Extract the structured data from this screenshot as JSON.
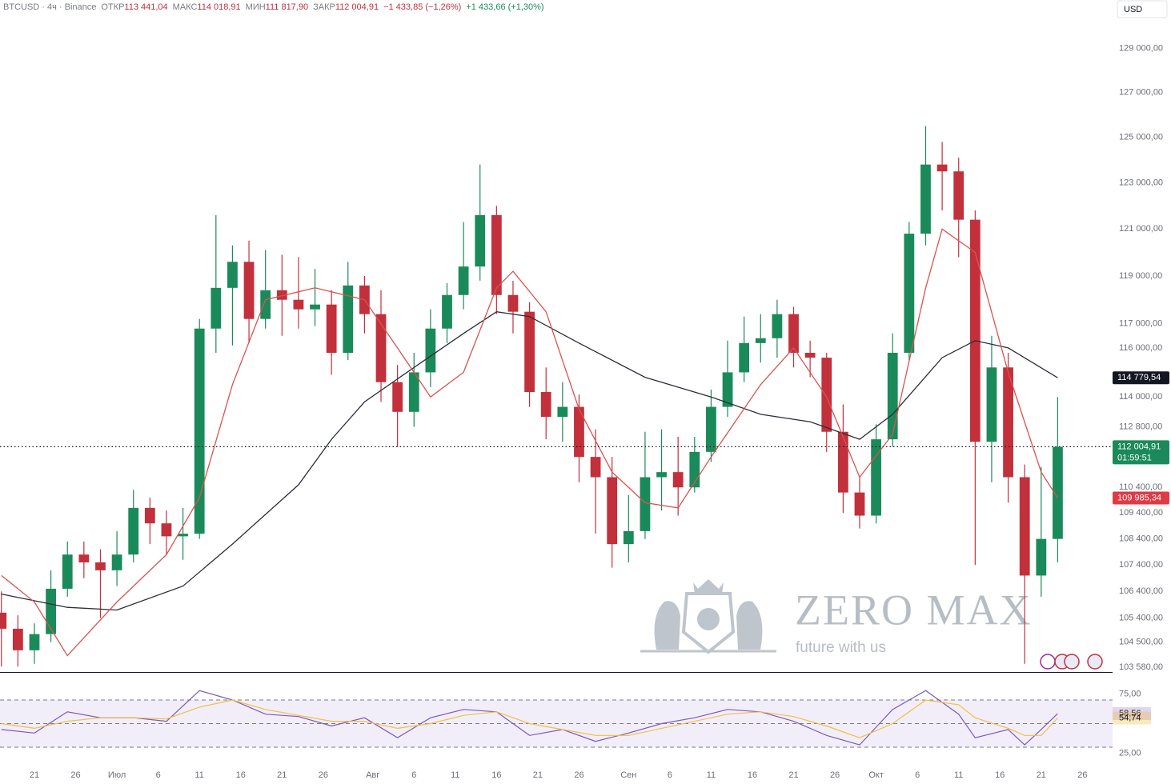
{
  "chart_data": {
    "type": "candlestick",
    "log_scale": true,
    "currency": "USD",
    "header": {
      "symbol": "BTCUSD · 4ч · Binance",
      "ohlc": [
        {
          "label": "ОТКР",
          "value": "113 441,04"
        },
        {
          "label": "МАКС",
          "value": "114 018,91"
        },
        {
          "label": "МИН",
          "value": "111 817,90"
        },
        {
          "label": "ЗАКР",
          "value": "112 004,91"
        }
      ],
      "change": "−1 433,85 (−1,26%)",
      "change_alt": "+1 433,66 (+1,30%)"
    },
    "watermark": {
      "title": "ZERO MAX",
      "tagline": "future with us"
    },
    "xlim": [
      -4.17,
      130.65
    ],
    "xticks": [
      {
        "value": 0,
        "label": "21"
      },
      {
        "value": 5,
        "label": "26"
      },
      {
        "value": 10,
        "label": "Июл"
      },
      {
        "value": 15,
        "label": "6"
      },
      {
        "value": 20,
        "label": "11"
      },
      {
        "value": 25,
        "label": "16"
      },
      {
        "value": 30,
        "label": "21"
      },
      {
        "value": 35,
        "label": "26"
      },
      {
        "value": 41,
        "label": "Авг"
      },
      {
        "value": 46,
        "label": "6"
      },
      {
        "value": 51,
        "label": "11"
      },
      {
        "value": 56,
        "label": "16"
      },
      {
        "value": 61,
        "label": "21"
      },
      {
        "value": 66,
        "label": "26"
      },
      {
        "value": 72,
        "label": "Сен"
      },
      {
        "value": 77,
        "label": "6"
      },
      {
        "value": 82,
        "label": "11"
      },
      {
        "value": 87,
        "label": "16"
      },
      {
        "value": 92,
        "label": "21"
      },
      {
        "value": 97,
        "label": "26"
      },
      {
        "value": 102,
        "label": "Окт"
      },
      {
        "value": 107,
        "label": "6"
      },
      {
        "value": 112,
        "label": "11"
      },
      {
        "value": 117,
        "label": "16"
      },
      {
        "value": 122,
        "label": "21"
      },
      {
        "value": 127,
        "label": "26"
      }
    ],
    "ylim": [
      103400,
      130500
    ],
    "yticks": [
      {
        "value": 129000,
        "label": "129 000,00"
      },
      {
        "value": 127000,
        "label": "127 000,00"
      },
      {
        "value": 125000,
        "label": "125 000,00"
      },
      {
        "value": 123000,
        "label": "123 000,00"
      },
      {
        "value": 121000,
        "label": "121 000,00"
      },
      {
        "value": 119000,
        "label": "119 000,00"
      },
      {
        "value": 117000,
        "label": "117 000,00"
      },
      {
        "value": 116000,
        "label": "116 000,00"
      },
      {
        "value": 114000,
        "label": "114 000,00"
      },
      {
        "value": 112800,
        "label": "112 800,00"
      },
      {
        "value": 110400,
        "label": "110 400,00"
      },
      {
        "value": 109400,
        "label": "109 400,00"
      },
      {
        "value": 108400,
        "label": "108 400,00"
      },
      {
        "value": 107400,
        "label": "107 400,00"
      },
      {
        "value": 106400,
        "label": "106 400,00"
      },
      {
        "value": 105400,
        "label": "105 400,00"
      },
      {
        "value": 104500,
        "label": "104 500,00"
      },
      {
        "value": 103580,
        "label": "103 580,00"
      }
    ],
    "up_color": "#1b8a5a",
    "down_color": "#c2303c",
    "candles": {
      "x": [
        -4,
        -2,
        0,
        2,
        4,
        6,
        8,
        10,
        12,
        14,
        16,
        18,
        20,
        22,
        24,
        26,
        28,
        30,
        32,
        34,
        36,
        38,
        40,
        42,
        44,
        46,
        48,
        50,
        52,
        54,
        56,
        58,
        60,
        62,
        64,
        66,
        68,
        70,
        72,
        74,
        76,
        78,
        80,
        82,
        84,
        86,
        88,
        90,
        92,
        94,
        96,
        98,
        100,
        102,
        104,
        106,
        108,
        110,
        112,
        114,
        116,
        118,
        120,
        122,
        124
      ],
      "open": [
        105600,
        105000,
        104200,
        104800,
        106500,
        107800,
        107500,
        107200,
        107800,
        109600,
        109000,
        108500,
        108600,
        116800,
        118500,
        119600,
        117200,
        118400,
        118000,
        117600,
        117800,
        115800,
        118600,
        117400,
        114600,
        113400,
        115000,
        116800,
        118200,
        119400,
        121600,
        118200,
        117500,
        114200,
        113200,
        113600,
        111600,
        110800,
        108200,
        108700,
        110800,
        111000,
        110400,
        111800,
        113600,
        115000,
        116200,
        116400,
        117400,
        115800,
        115600,
        112600,
        110200,
        109300,
        112300,
        115800,
        120800,
        123800,
        123500,
        121400,
        112200,
        115200,
        110800,
        107000,
        108400
      ],
      "high": [
        106400,
        105500,
        105200,
        107200,
        108300,
        108300,
        108000,
        108700,
        110300,
        110000,
        109500,
        109600,
        117200,
        121600,
        120300,
        120500,
        120100,
        119900,
        119800,
        119300,
        118400,
        119600,
        119000,
        118400,
        115300,
        115800,
        117600,
        118700,
        121300,
        123800,
        122000,
        118800,
        117900,
        115200,
        114600,
        114100,
        112700,
        111600,
        110100,
        112600,
        112700,
        112400,
        112400,
        114300,
        116300,
        117300,
        117400,
        118000,
        117700,
        116300,
        115800,
        113700,
        110800,
        112900,
        116600,
        121300,
        125500,
        124800,
        124100,
        121800,
        116500,
        115800,
        111300,
        111200,
        114000
      ],
      "low": [
        103600,
        103600,
        103700,
        104500,
        106200,
        106900,
        105400,
        106600,
        107500,
        108200,
        107800,
        107600,
        108400,
        115800,
        116100,
        116200,
        116800,
        116500,
        116800,
        116900,
        114900,
        115500,
        116600,
        113800,
        112000,
        112800,
        114400,
        116200,
        117600,
        118800,
        117400,
        116600,
        113600,
        112300,
        112200,
        110600,
        108600,
        107300,
        107500,
        108400,
        109500,
        109300,
        110200,
        111400,
        113200,
        114600,
        115400,
        115600,
        115200,
        114800,
        111800,
        109400,
        108800,
        109000,
        112000,
        115500,
        120300,
        121800,
        119800,
        107400,
        110600,
        109800,
        103700,
        106200,
        107500
      ],
      "close": [
        105000,
        104200,
        104800,
        106500,
        107800,
        107500,
        107200,
        107800,
        109600,
        109000,
        108500,
        108600,
        116800,
        118500,
        119600,
        117200,
        118400,
        118000,
        117600,
        117800,
        115800,
        118600,
        117400,
        114600,
        113400,
        115000,
        116800,
        118200,
        119400,
        121600,
        118200,
        117500,
        114200,
        113200,
        113600,
        111600,
        110800,
        108200,
        108700,
        110800,
        111000,
        110400,
        111800,
        113600,
        115000,
        116200,
        116400,
        117400,
        115800,
        115600,
        112600,
        110200,
        109300,
        112300,
        115800,
        120800,
        123800,
        123500,
        121400,
        112200,
        115200,
        110800,
        107000,
        108400,
        112000
      ]
    },
    "moving_averages": [
      {
        "color": "#2a2e39",
        "x": [
          -4,
          4,
          10,
          18,
          24,
          32,
          36,
          40,
          46,
          52,
          56,
          60,
          66,
          74,
          82,
          88,
          94,
          100,
          104,
          110,
          114,
          118,
          124
        ],
        "values": [
          106300,
          105800,
          105700,
          106600,
          108200,
          110500,
          112300,
          113800,
          115200,
          116600,
          117500,
          117300,
          116200,
          114800,
          114000,
          113300,
          113000,
          112300,
          113300,
          115600,
          116300,
          116000,
          114779.54
        ]
      },
      {
        "color": "#d9534f",
        "x": [
          -4,
          0,
          4,
          10,
          16,
          20,
          24,
          28,
          34,
          40,
          44,
          48,
          52,
          56,
          58,
          62,
          66,
          70,
          74,
          78,
          82,
          88,
          92,
          96,
          100,
          104,
          108,
          110,
          114,
          118,
          122,
          124
        ],
        "values": [
          107000,
          106000,
          104000,
          106000,
          107800,
          110000,
          114500,
          118000,
          118500,
          118000,
          116000,
          114000,
          115000,
          118500,
          119200,
          117500,
          113500,
          111000,
          109800,
          109600,
          111600,
          114500,
          116000,
          114000,
          110800,
          112500,
          118500,
          121000,
          120000,
          115000,
          111000,
          109985.34
        ]
      }
    ],
    "price_labels": [
      {
        "value": 114779.54,
        "label": "114 779,54",
        "color": "#131722"
      },
      {
        "value": 112004.91,
        "label": "112 004,91",
        "sub": "01:59:51",
        "color": "#1b8a5a",
        "line": true
      },
      {
        "value": 109985.34,
        "label": "109 985,34",
        "color": "#e03a45"
      }
    ],
    "rsi": {
      "ylim": [
        12.4,
        92.4
      ],
      "yticks": [
        {
          "value": 75,
          "label": "75,00"
        },
        {
          "value": 25,
          "label": "25,00"
        }
      ],
      "levels": [
        70,
        50,
        30
      ],
      "band_color": "#7e57c2",
      "x": [
        -4,
        0,
        4,
        8,
        12,
        16,
        20,
        24,
        28,
        32,
        36,
        40,
        44,
        48,
        52,
        56,
        60,
        64,
        68,
        72,
        76,
        80,
        84,
        88,
        92,
        96,
        100,
        104,
        108,
        112,
        114,
        118,
        120,
        122,
        124
      ],
      "series": [
        {
          "color": "#7e57c2",
          "value_label": "58,56",
          "values": [
            45,
            42,
            60,
            55,
            55,
            52,
            78,
            70,
            58,
            56,
            48,
            55,
            38,
            55,
            62,
            60,
            40,
            45,
            35,
            42,
            50,
            55,
            62,
            60,
            52,
            40,
            32,
            62,
            78,
            58,
            38,
            45,
            32,
            45,
            58.56
          ]
        },
        {
          "color": "#f0c040",
          "value_label": "54,74",
          "values": [
            50,
            46,
            52,
            55,
            55,
            54,
            64,
            70,
            62,
            57,
            52,
            52,
            46,
            50,
            57,
            60,
            50,
            45,
            40,
            40,
            46,
            52,
            58,
            60,
            56,
            48,
            38,
            50,
            70,
            66,
            55,
            46,
            40,
            40,
            54.74
          ]
        }
      ]
    }
  }
}
